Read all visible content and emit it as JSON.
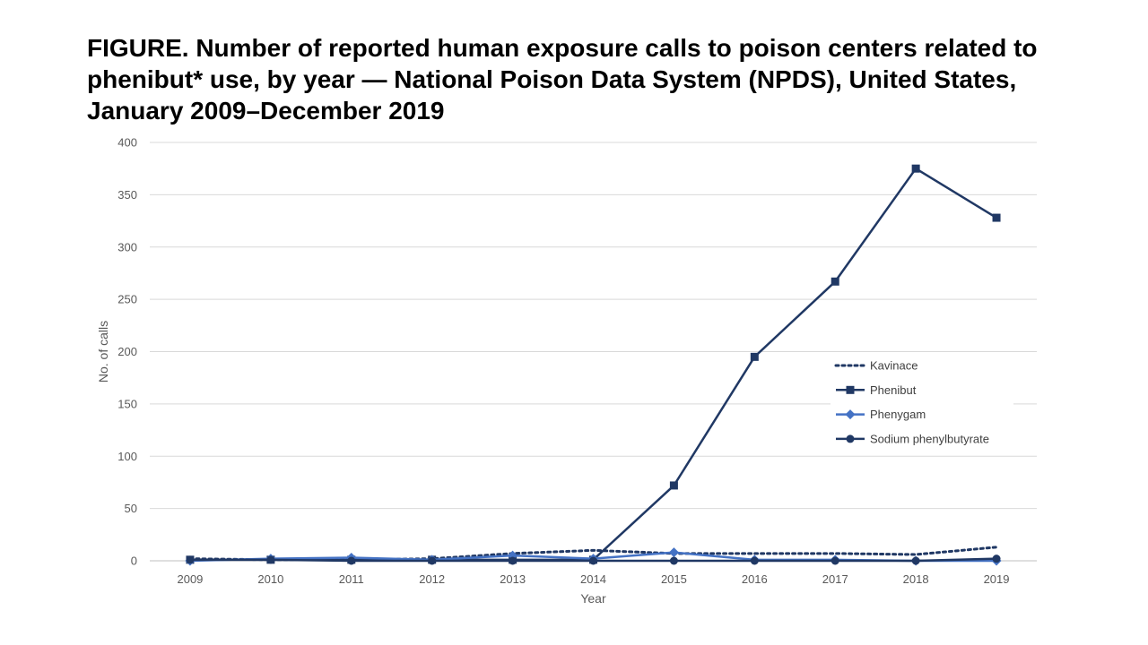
{
  "figure_title": "FIGURE. Number of reported human exposure calls to poison centers related to phenibut* use, by year — National Poison Data System (NPDS), United States, January 2009–December 2019",
  "chart_data": {
    "type": "line",
    "title": "FIGURE. Number of reported human exposure calls to poison centers related to phenibut* use, by year — National Poison Data System (NPDS), United States, January 2009–December 2019",
    "xlabel": "Year",
    "ylabel": "No. of calls",
    "x": [
      "2009",
      "2010",
      "2011",
      "2012",
      "2013",
      "2014",
      "2015",
      "2016",
      "2017",
      "2018",
      "2019"
    ],
    "ylim": [
      0,
      400
    ],
    "yticks": [
      0,
      50,
      100,
      150,
      200,
      250,
      300,
      350,
      400
    ],
    "grid": "horizontal",
    "legend_position": "right",
    "series": [
      {
        "name": "Kavinace",
        "values": [
          2,
          1,
          1,
          2,
          7,
          10,
          7,
          7,
          7,
          6,
          13
        ],
        "color": "#203864",
        "style": "dotted",
        "marker": "none"
      },
      {
        "name": "Phenibut",
        "values": [
          1,
          1,
          1,
          1,
          1,
          1,
          72,
          195,
          267,
          375,
          328
        ],
        "color": "#203864",
        "style": "solid",
        "marker": "square"
      },
      {
        "name": "Phenygam",
        "values": [
          0,
          2,
          3,
          1,
          5,
          2,
          8,
          1,
          1,
          0,
          0
        ],
        "color": "#4472c4",
        "style": "solid",
        "marker": "diamond"
      },
      {
        "name": "Sodium phenylbutyrate",
        "values": [
          1,
          1,
          0,
          0,
          0,
          0,
          0,
          0,
          0,
          0,
          2
        ],
        "color": "#203864",
        "style": "solid",
        "marker": "circle"
      }
    ]
  }
}
